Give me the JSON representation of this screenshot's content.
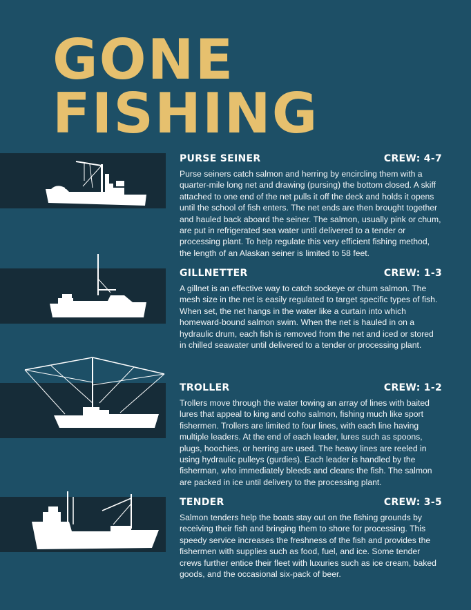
{
  "title": {
    "line1": "GONE",
    "line2": "FISHING"
  },
  "sections": [
    {
      "name": "PURSE SEINER",
      "crew": "CREW: 4-7",
      "text": "Purse seiners catch salmon and herring by encircling them with a quarter-mile long net and drawing (pursing) the bottom closed. A skiff attached to one end of the net pulls it off the deck and holds it opens until the school of fish enters. The net ends are then brought together and hauled back aboard the seiner. The salmon, usually pink or chum, are put in refrigerated sea water until delivered to a tender or processing plant. To help regulate this very efficient fishing method, the length of an Alaskan seiner is limited to 58 feet."
    },
    {
      "name": "GILLNETTER",
      "crew": "CREW: 1-3",
      "text": "A gillnet is an effective way to catch sockeye or chum salmon. The mesh size in the net is easily regulated to target specific types of fish. When set, the net hangs in the water like a curtain into which homeward-bound salmon swim. When the net is hauled in on a hydraulic drum, each fish is removed from the net and iced or stored in chilled seawater until delivered to a tender or processing plant."
    },
    {
      "name": "TROLLER",
      "crew": "CREW: 1-2",
      "text": "Trollers move through the water towing an array of lines with baited lures that appeal to king and coho salmon, fishing much like sport fishermen. Trollers are limited to four lines, with each line having multiple leaders. At the end of each leader, lures such as spoons, plugs, hoochies, or herring are used. The heavy lines are reeled in using hydraulic pulleys (gurdies). Each leader is handled by the fisherman, who immediately bleeds and cleans the fish. The salmon are packed in ice until delivery to the processing plant."
    },
    {
      "name": "TENDER",
      "crew": "CREW: 3-5",
      "text": "Salmon tenders help the boats stay out on the fishing grounds by receiving their fish and bringing them to shore for processing. This speedy service increases the freshness of the fish and provides the fishermen with supplies such as food, fuel, and ice. Some tender crews further entice their fleet with luxuries such as ice cream, baked goods, and the occasional six-pack of beer."
    }
  ],
  "icons": [
    "purse-seiner-icon",
    "gillnetter-icon",
    "troller-icon",
    "tender-icon"
  ],
  "colors": {
    "background": "#1d4f66",
    "band": "#162c38",
    "title": "#e6c06e",
    "text": "#ffffff"
  }
}
